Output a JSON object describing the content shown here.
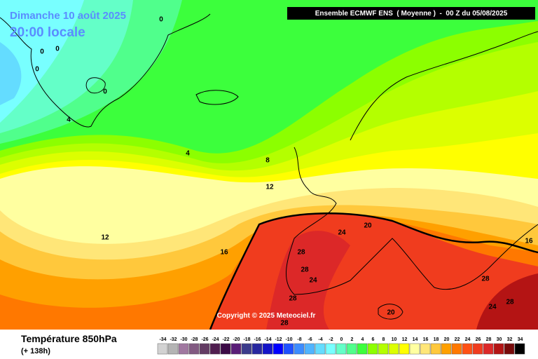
{
  "header": {
    "date": "Dimanche 10 août 2025",
    "time": "20:00 locale",
    "model": "Ensemble ECMWF ENS  ( Moyenne )  -  00 Z du 05/08/2025"
  },
  "copyright": "Copyright © 2025 Meteociel.fr",
  "footer": {
    "title": "Température 850hPa",
    "lead": "(+ 138h)"
  },
  "contour_labels": [
    0,
    0,
    0,
    0,
    0,
    4,
    4,
    8,
    12,
    12,
    16,
    16,
    24,
    20,
    28,
    28,
    24,
    28,
    28,
    24,
    28,
    20,
    28
  ],
  "colorbar": {
    "ticks": [
      -34,
      -32,
      -30,
      -28,
      -26,
      -24,
      -22,
      -20,
      -18,
      -16,
      -14,
      -12,
      -10,
      -8,
      -6,
      -4,
      -2,
      0,
      2,
      4,
      6,
      8,
      10,
      12,
      14,
      16,
      18,
      20,
      22,
      24,
      26,
      28,
      30,
      32,
      34
    ],
    "colors": [
      "#d2d2d2",
      "#b4b4b4",
      "#a078a0",
      "#825a82",
      "#643c64",
      "#501e50",
      "#3c0a46",
      "#5a1e78",
      "#3c3c8c",
      "#2828a0",
      "#1414c8",
      "#0000ff",
      "#1e50ff",
      "#3c8cff",
      "#50b4ff",
      "#64dcff",
      "#78ffff",
      "#64ffc8",
      "#50ff8c",
      "#3cff3c",
      "#8cff00",
      "#b4ff00",
      "#dcff00",
      "#ffff00",
      "#ffffa0",
      "#ffe678",
      "#ffc83c",
      "#ffa000",
      "#ff7800",
      "#ff5014",
      "#f03c1e",
      "#dc2828",
      "#b41414",
      "#780a0a",
      "#000000"
    ]
  }
}
